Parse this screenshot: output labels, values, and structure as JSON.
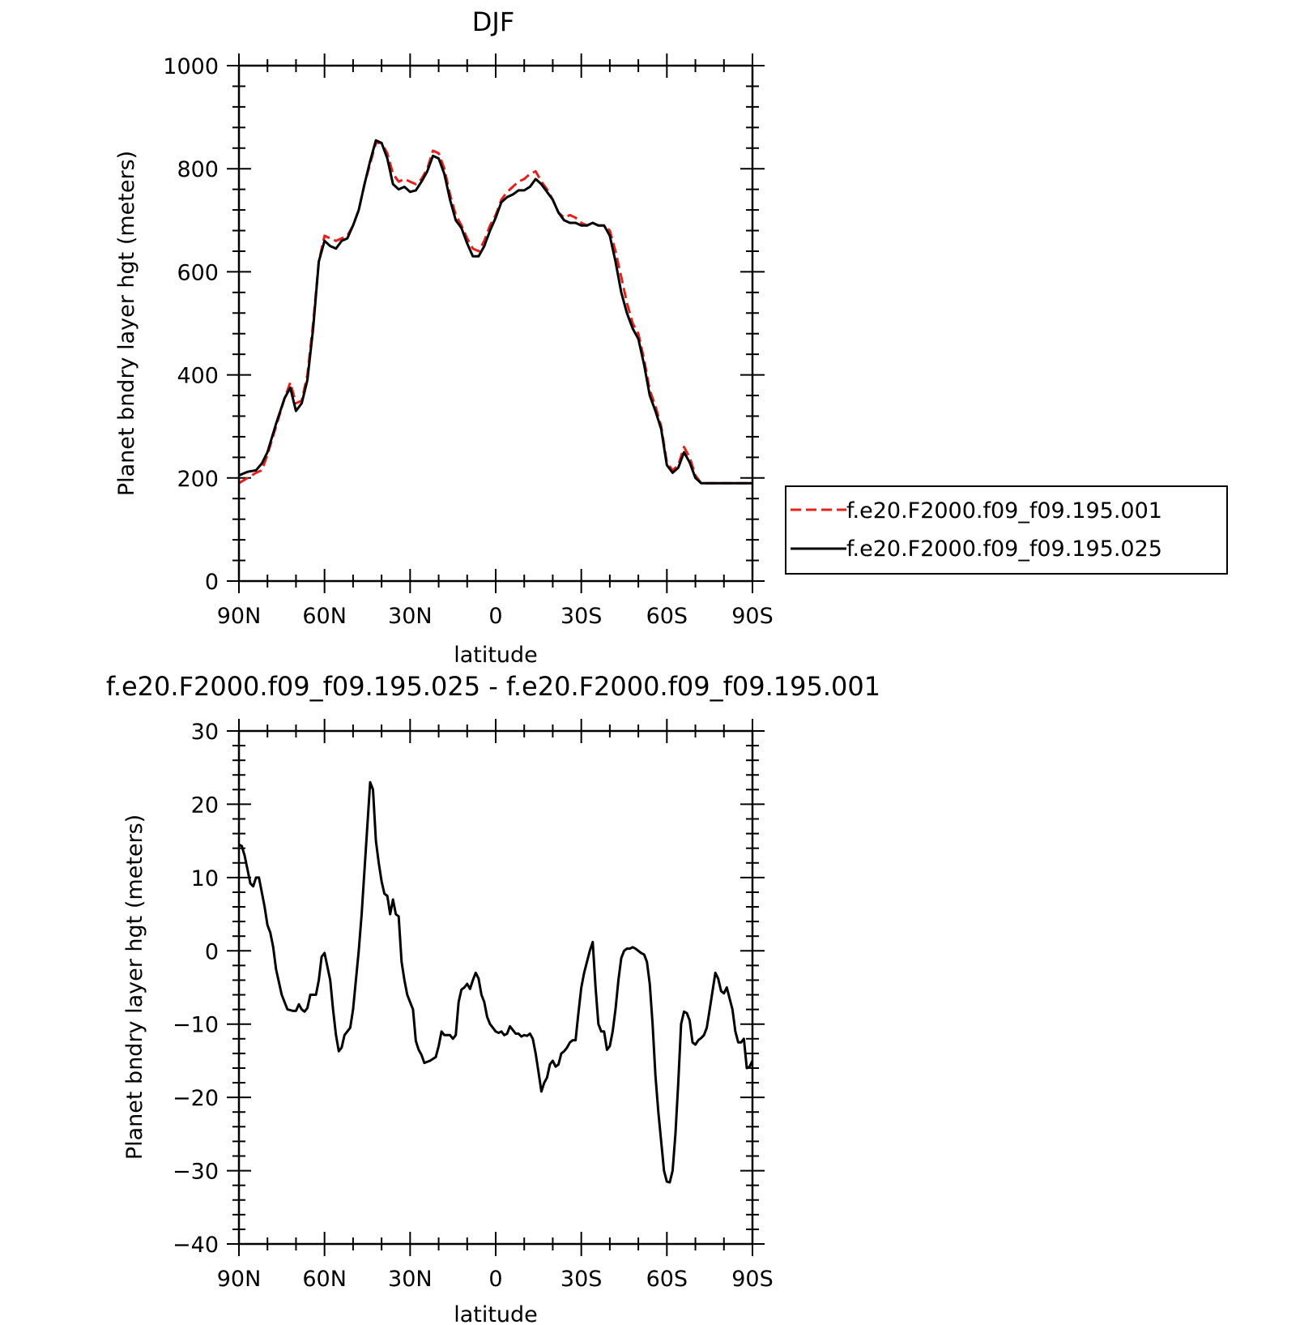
{
  "chart_data": [
    {
      "type": "line",
      "title": "DJF",
      "xlabel": "latitude",
      "ylabel": "Planet bndry layer hgt (meters)",
      "xlim": [
        90,
        -90
      ],
      "ylim": [
        0,
        1000
      ],
      "x_tick_values": [
        90,
        60,
        30,
        0,
        -30,
        -60,
        -90
      ],
      "x_tick_labels": [
        "90N",
        "60N",
        "30N",
        "0",
        "30S",
        "60S",
        "90S"
      ],
      "y_tick_values": [
        0,
        200,
        400,
        600,
        800,
        1000
      ],
      "y_tick_labels": [
        "0",
        "200",
        "400",
        "600",
        "800",
        "1000"
      ],
      "grid": false,
      "legend": "outside-right",
      "x": [
        90,
        87,
        84,
        82,
        80,
        77,
        74,
        72,
        70,
        68,
        66,
        64,
        62,
        60,
        58,
        56,
        54,
        52,
        50,
        48,
        46,
        44,
        42,
        40,
        38,
        36,
        34,
        32,
        30,
        28,
        26,
        24,
        22,
        20,
        18,
        16,
        14,
        12,
        10,
        8,
        6,
        4,
        2,
        0,
        -2,
        -4,
        -6,
        -8,
        -10,
        -12,
        -14,
        -16,
        -18,
        -20,
        -22,
        -24,
        -26,
        -28,
        -30,
        -32,
        -34,
        -36,
        -38,
        -40,
        -42,
        -44,
        -46,
        -48,
        -50,
        -52,
        -54,
        -56,
        -58,
        -60,
        -62,
        -64,
        -66,
        -68,
        -70,
        -72,
        -74,
        -76,
        -78,
        -80,
        -82,
        -84,
        -86,
        -88,
        -90
      ],
      "series": [
        {
          "name": "f.e20.F2000.f09_f09.195.001",
          "color": "#e8201c",
          "dash": "dashed",
          "values": [
            190,
            200,
            210,
            215,
            245,
            300,
            355,
            385,
            345,
            350,
            400,
            500,
            620,
            670,
            665,
            660,
            665,
            670,
            690,
            720,
            770,
            810,
            850,
            850,
            830,
            790,
            775,
            780,
            775,
            770,
            780,
            800,
            835,
            830,
            800,
            750,
            710,
            690,
            665,
            645,
            640,
            660,
            690,
            710,
            740,
            755,
            765,
            775,
            780,
            790,
            795,
            775,
            760,
            740,
            715,
            705,
            710,
            705,
            695,
            690,
            695,
            690,
            690,
            680,
            640,
            590,
            540,
            500,
            480,
            430,
            370,
            340,
            300,
            230,
            215,
            225,
            260,
            240,
            205,
            190,
            190,
            190,
            190,
            190,
            190,
            190,
            190,
            190,
            190
          ]
        },
        {
          "name": "f.e20.F2000.f09_f09.195.025",
          "color": "#000000",
          "dash": "solid",
          "values": [
            205,
            212,
            215,
            228,
            250,
            305,
            355,
            375,
            330,
            345,
            390,
            490,
            620,
            660,
            650,
            645,
            660,
            665,
            690,
            720,
            770,
            815,
            855,
            850,
            820,
            770,
            760,
            765,
            755,
            758,
            775,
            795,
            825,
            820,
            790,
            740,
            700,
            685,
            655,
            630,
            630,
            650,
            680,
            705,
            735,
            745,
            750,
            758,
            758,
            765,
            780,
            770,
            755,
            740,
            715,
            700,
            695,
            695,
            690,
            690,
            695,
            690,
            690,
            670,
            620,
            560,
            520,
            490,
            470,
            420,
            360,
            330,
            295,
            225,
            210,
            220,
            250,
            230,
            200,
            190,
            190,
            190,
            190,
            190,
            190,
            190,
            190,
            190,
            190
          ]
        }
      ]
    },
    {
      "type": "line",
      "title": "f.e20.F2000.f09_f09.195.025 - f.e20.F2000.f09_f09.195.001",
      "xlabel": "latitude",
      "ylabel": "Planet bndry layer hgt (meters)",
      "xlim": [
        90,
        -90
      ],
      "ylim": [
        -40,
        30
      ],
      "x_tick_values": [
        90,
        60,
        30,
        0,
        -30,
        -60,
        -90
      ],
      "x_tick_labels": [
        "90N",
        "60N",
        "30N",
        "0",
        "30S",
        "60S",
        "90S"
      ],
      "y_tick_values": [
        -40,
        -30,
        -20,
        -10,
        0,
        10,
        20,
        30
      ],
      "y_tick_labels": [
        "−40",
        "−30",
        "−20",
        "−10",
        "0",
        "10",
        "20",
        "30"
      ],
      "grid": false,
      "legend": "none",
      "series": [
        {
          "color": "#000000",
          "dash": "solid",
          "x": [
            90,
            89,
            88,
            86,
            85,
            84,
            83,
            81,
            80,
            79,
            78,
            77,
            75,
            73,
            71,
            70,
            69,
            68,
            67,
            66,
            65,
            63,
            62,
            61,
            60,
            58,
            57,
            56,
            55,
            54,
            53,
            51,
            50,
            49,
            48,
            47,
            46,
            45,
            44,
            43,
            42,
            41,
            40,
            39,
            38,
            37,
            36,
            35,
            34,
            33,
            32,
            31,
            30,
            29,
            28,
            27,
            26,
            25,
            23,
            21,
            20,
            19,
            18,
            16,
            15,
            14,
            13,
            12,
            11,
            10,
            9,
            8,
            7,
            6,
            5,
            4,
            3,
            2,
            1,
            0,
            -1,
            -2,
            -3,
            -4,
            -5,
            -6,
            -7,
            -8,
            -9,
            -10,
            -11,
            -12,
            -13,
            -14,
            -15,
            -16,
            -17,
            -18,
            -19,
            -20,
            -21,
            -22,
            -23,
            -24,
            -25,
            -26,
            -27,
            -28,
            -29,
            -30,
            -31,
            -32,
            -33,
            -34,
            -35,
            -36,
            -37,
            -38,
            -39,
            -40,
            -41,
            -42,
            -43,
            -44,
            -45,
            -46,
            -47,
            -48,
            -49,
            -50,
            -51,
            -52,
            -53,
            -54,
            -55,
            -56,
            -57,
            -58,
            -59,
            -60,
            -61,
            -62,
            -63,
            -64,
            -65,
            -66,
            -67,
            -68,
            -69,
            -70,
            -71,
            -72,
            -73,
            -74,
            -75,
            -76,
            -77,
            -78,
            -79,
            -80,
            -81,
            -82,
            -83,
            -84,
            -85,
            -86,
            -87,
            -88,
            -89,
            -90
          ],
          "values": [
            14.5,
            14.3,
            13,
            9.2,
            8.8,
            10,
            10,
            6,
            3.5,
            2.5,
            0.5,
            -2.5,
            -6,
            -8,
            -8.2,
            -8.2,
            -7.3,
            -8,
            -8.3,
            -7.8,
            -6,
            -6,
            -4,
            -0.8,
            -0.3,
            -4,
            -8,
            -11.5,
            -13.7,
            -13.2,
            -11.5,
            -10.5,
            -8,
            -4,
            0,
            5,
            11,
            17,
            23,
            22,
            15,
            12,
            9.5,
            7.8,
            7.5,
            5,
            7,
            5,
            4.7,
            -1.5,
            -4,
            -6,
            -7,
            -8,
            -12.3,
            -13.5,
            -14.2,
            -15.3,
            -15,
            -14.5,
            -13,
            -11,
            -11.5,
            -11.5,
            -12,
            -11.5,
            -7,
            -5.3,
            -5,
            -4.5,
            -5.2,
            -4,
            -3,
            -3.8,
            -6,
            -7,
            -9,
            -10,
            -10.5,
            -11,
            -11.2,
            -11,
            -11.5,
            -11.3,
            -10.3,
            -10.8,
            -11.3,
            -11.3,
            -11.7,
            -11.5,
            -11.6,
            -11.3,
            -12,
            -14,
            -16.5,
            -19.2,
            -18,
            -17.3,
            -15.5,
            -15,
            -15.8,
            -15.5,
            -14,
            -13.7,
            -13.2,
            -12.5,
            -12.2,
            -12.2,
            -8.5,
            -5,
            -3,
            -1.5,
            0,
            1.2,
            -5,
            -10,
            -11,
            -11,
            -13.5,
            -13,
            -11,
            -8,
            -4,
            -1,
            0,
            0.3,
            0.3,
            0.5,
            0.3,
            0,
            -0.3,
            -0.5,
            -1.5,
            -4.5,
            -10,
            -17,
            -22,
            -26,
            -30,
            -31.5,
            -31.6,
            -30,
            -25,
            -18,
            -10,
            -8.3,
            -8.5,
            -9.5,
            -12.5,
            -12.8,
            -12.2,
            -11.9,
            -11.5,
            -10.5,
            -8,
            -5.5,
            -3,
            -3.8,
            -5.5,
            -5.8,
            -5,
            -6.5,
            -8,
            -11,
            -12.5,
            -12.5,
            -12,
            -16,
            -15.8,
            -15
          ]
        }
      ]
    }
  ]
}
